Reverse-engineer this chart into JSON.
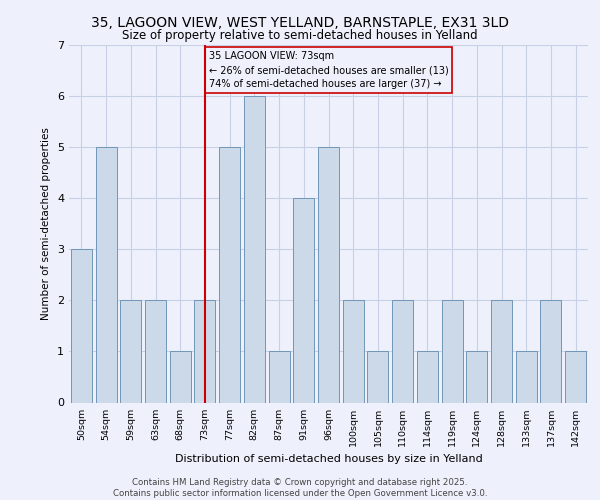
{
  "title_line1": "35, LAGOON VIEW, WEST YELLAND, BARNSTAPLE, EX31 3LD",
  "title_line2": "Size of property relative to semi-detached houses in Yelland",
  "xlabel": "Distribution of semi-detached houses by size in Yelland",
  "ylabel": "Number of semi-detached properties",
  "footer_line1": "Contains HM Land Registry data © Crown copyright and database right 2025.",
  "footer_line2": "Contains public sector information licensed under the Open Government Licence v3.0.",
  "bins": [
    "50sqm",
    "54sqm",
    "59sqm",
    "63sqm",
    "68sqm",
    "73sqm",
    "77sqm",
    "82sqm",
    "87sqm",
    "91sqm",
    "96sqm",
    "100sqm",
    "105sqm",
    "110sqm",
    "114sqm",
    "119sqm",
    "124sqm",
    "128sqm",
    "133sqm",
    "137sqm",
    "142sqm"
  ],
  "values": [
    3,
    5,
    2,
    2,
    1,
    2,
    5,
    6,
    1,
    4,
    5,
    2,
    1,
    2,
    1,
    2,
    1,
    2,
    1,
    2,
    1
  ],
  "subject_bin_index": 5,
  "subject_label": "35 LAGOON VIEW: 73sqm",
  "pct_smaller": 26,
  "count_smaller": 13,
  "pct_larger": 74,
  "count_larger": 37,
  "bar_color": "#ccd9e8",
  "bar_edge_color": "#7096b8",
  "subject_line_color": "#cc0000",
  "annotation_box_color": "#cc0000",
  "background_color": "#eef1fb",
  "grid_color": "#c8d0e8",
  "ylim": [
    0,
    7
  ],
  "title1_fontsize": 10,
  "title2_fontsize": 8.5,
  "footer_fontsize": 6.2,
  "ylabel_fontsize": 7.5,
  "xlabel_fontsize": 8,
  "ytick_fontsize": 8,
  "xtick_fontsize": 6.8,
  "ann_fontsize": 7
}
